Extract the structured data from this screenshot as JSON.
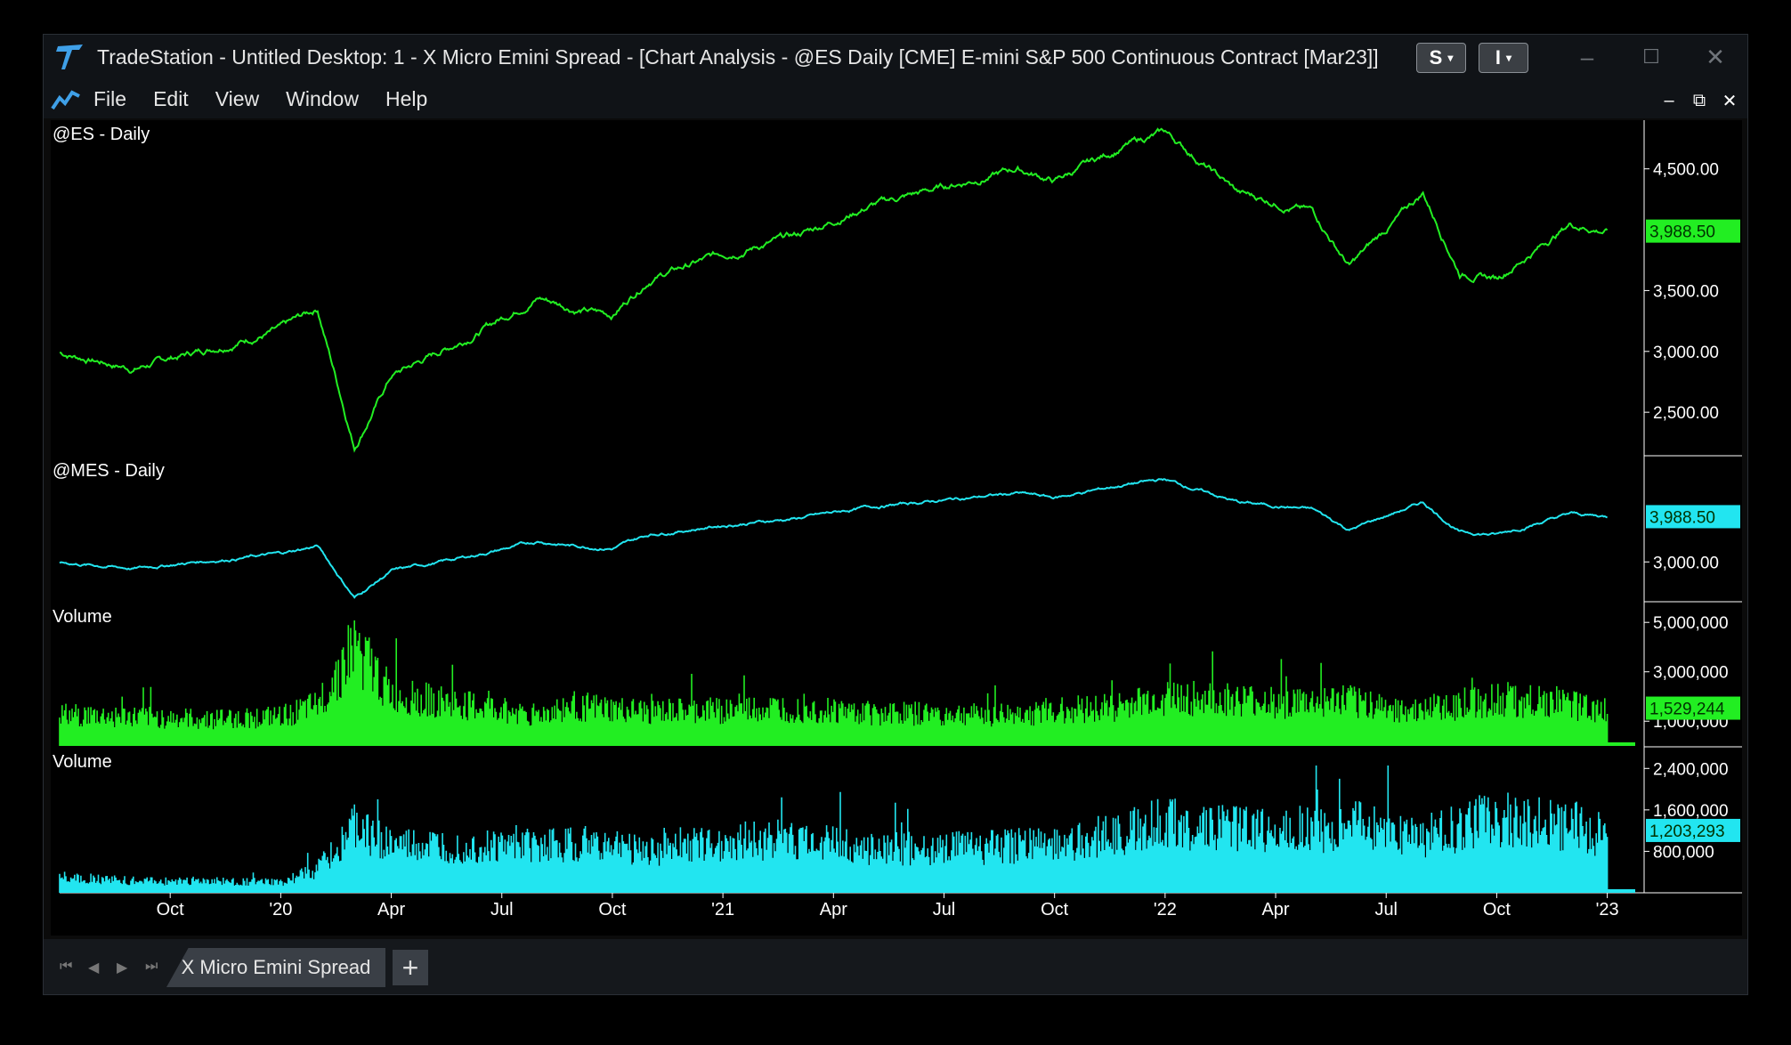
{
  "window": {
    "title": "TradeStation  - Untitled Desktop: 1 - X Micro Emini Spread - [Chart Analysis - @ES Daily [CME] E-mini S&P 500 Continuous Contract [Mar23]]",
    "btn_s": "S",
    "btn_i": "I",
    "minimize_icon": "minimize-icon",
    "maximize_icon": "maximize-icon",
    "close_icon": "close-icon"
  },
  "menu": {
    "items": [
      "File",
      "Edit",
      "View",
      "Window",
      "Help"
    ]
  },
  "chart_data": [
    {
      "type": "line",
      "label": "@ES - Daily",
      "color": "#22ee22",
      "y_ticks": [
        "4,500.00",
        "3,500.00",
        "3,000.00",
        "2,500.00"
      ],
      "y_tick_values": [
        4500,
        3500,
        3000,
        2500
      ],
      "ylim": [
        2150,
        4900
      ],
      "last_value": "3,988.50",
      "x": [
        "2019-07",
        "2019-09",
        "2019-11",
        "2020-01",
        "2020-02",
        "2020-03",
        "2020-04",
        "2020-06",
        "2020-08",
        "2020-09",
        "2020-10",
        "2020-11",
        "2021-01",
        "2021-03",
        "2021-05",
        "2021-07",
        "2021-09",
        "2021-10",
        "2021-12",
        "2022-01",
        "2022-03",
        "2022-05",
        "2022-06",
        "2022-08",
        "2022-09",
        "2022-10",
        "2022-12",
        "2023-01"
      ],
      "values": [
        2990,
        2860,
        3020,
        3180,
        3350,
        2220,
        2800,
        3100,
        3450,
        3350,
        3300,
        3600,
        3800,
        3950,
        4200,
        4350,
        4500,
        4400,
        4700,
        4800,
        4300,
        4150,
        3700,
        4300,
        3650,
        3600,
        4050,
        3988.5
      ]
    },
    {
      "type": "line",
      "label": "@MES - Daily",
      "color": "#22e5f0",
      "y_ticks": [
        "3,000.00"
      ],
      "y_tick_values": [
        3000
      ],
      "ylim": [
        2150,
        5300
      ],
      "last_value": "3,988.50",
      "x": [
        "2019-07",
        "2019-09",
        "2019-11",
        "2020-01",
        "2020-02",
        "2020-03",
        "2020-04",
        "2020-06",
        "2020-08",
        "2020-09",
        "2020-10",
        "2020-11",
        "2021-01",
        "2021-03",
        "2021-05",
        "2021-07",
        "2021-09",
        "2021-10",
        "2021-12",
        "2022-01",
        "2022-03",
        "2022-05",
        "2022-06",
        "2022-08",
        "2022-09",
        "2022-10",
        "2022-12",
        "2023-01"
      ],
      "values": [
        2990,
        2860,
        3020,
        3180,
        3350,
        2220,
        2800,
        3100,
        3450,
        3350,
        3300,
        3600,
        3800,
        3950,
        4200,
        4350,
        4500,
        4400,
        4700,
        4800,
        4300,
        4150,
        3700,
        4300,
        3650,
        3600,
        4050,
        3988.5
      ]
    },
    {
      "type": "bar",
      "label": "Volume",
      "color": "#22ee22",
      "y_ticks": [
        "5,000,000",
        "3,000,000",
        "1,000,000"
      ],
      "y_tick_values": [
        5000000,
        3000000,
        1000000
      ],
      "ylim": [
        0,
        5800000
      ],
      "last_value": "1,529,244",
      "x": [
        "2019-07",
        "2019-09",
        "2019-11",
        "2020-01",
        "2020-02",
        "2020-03",
        "2020-04",
        "2020-06",
        "2020-08",
        "2020-09",
        "2020-10",
        "2020-11",
        "2021-01",
        "2021-03",
        "2021-05",
        "2021-07",
        "2021-09",
        "2021-10",
        "2021-12",
        "2022-01",
        "2022-03",
        "2022-05",
        "2022-06",
        "2022-08",
        "2022-09",
        "2022-10",
        "2022-12",
        "2023-01"
      ],
      "values": [
        1400000,
        1300000,
        1200000,
        1300000,
        1800000,
        4500000,
        2300000,
        1800000,
        1400000,
        1800000,
        1600000,
        1500000,
        1600000,
        1700000,
        1500000,
        1400000,
        1400000,
        1600000,
        1800000,
        2200000,
        2000000,
        1900000,
        2000000,
        1500000,
        1900000,
        2100000,
        1900000,
        1529244
      ]
    },
    {
      "type": "bar",
      "label": "Volume",
      "color": "#22e5f0",
      "y_ticks": [
        "2,400,000",
        "1,600,000",
        "800,000"
      ],
      "y_tick_values": [
        2400000,
        1600000,
        800000
      ],
      "ylim": [
        0,
        2800000
      ],
      "last_value": "1,203,293",
      "x": [
        "2019-07",
        "2019-09",
        "2019-11",
        "2020-01",
        "2020-02",
        "2020-03",
        "2020-04",
        "2020-06",
        "2020-08",
        "2020-09",
        "2020-10",
        "2020-11",
        "2021-01",
        "2021-03",
        "2021-05",
        "2021-07",
        "2021-09",
        "2021-10",
        "2021-12",
        "2022-01",
        "2022-03",
        "2022-05",
        "2022-06",
        "2022-08",
        "2022-09",
        "2022-10",
        "2022-12",
        "2023-01"
      ],
      "values": [
        350000,
        250000,
        250000,
        220000,
        500000,
        1400000,
        1000000,
        950000,
        1000000,
        1050000,
        1000000,
        900000,
        1100000,
        1150000,
        950000,
        950000,
        1000000,
        1050000,
        1300000,
        1500000,
        1350000,
        1350000,
        1450000,
        1200000,
        1400000,
        1600000,
        1450000,
        1203293
      ]
    }
  ],
  "x_axis": {
    "ticks": [
      "Oct",
      "'20",
      "Apr",
      "Jul",
      "Oct",
      "'21",
      "Apr",
      "Jul",
      "Oct",
      "'22",
      "Apr",
      "Jul",
      "Oct",
      "'23"
    ],
    "tick_dates": [
      "2019-10",
      "2020-01",
      "2020-04",
      "2020-07",
      "2020-10",
      "2021-01",
      "2021-04",
      "2021-07",
      "2021-10",
      "2022-01",
      "2022-04",
      "2022-07",
      "2022-10",
      "2023-01"
    ],
    "range": [
      "2019-07",
      "2023-02"
    ]
  },
  "tabs": {
    "active": "X Micro Emini Spread",
    "add_label": "+"
  }
}
